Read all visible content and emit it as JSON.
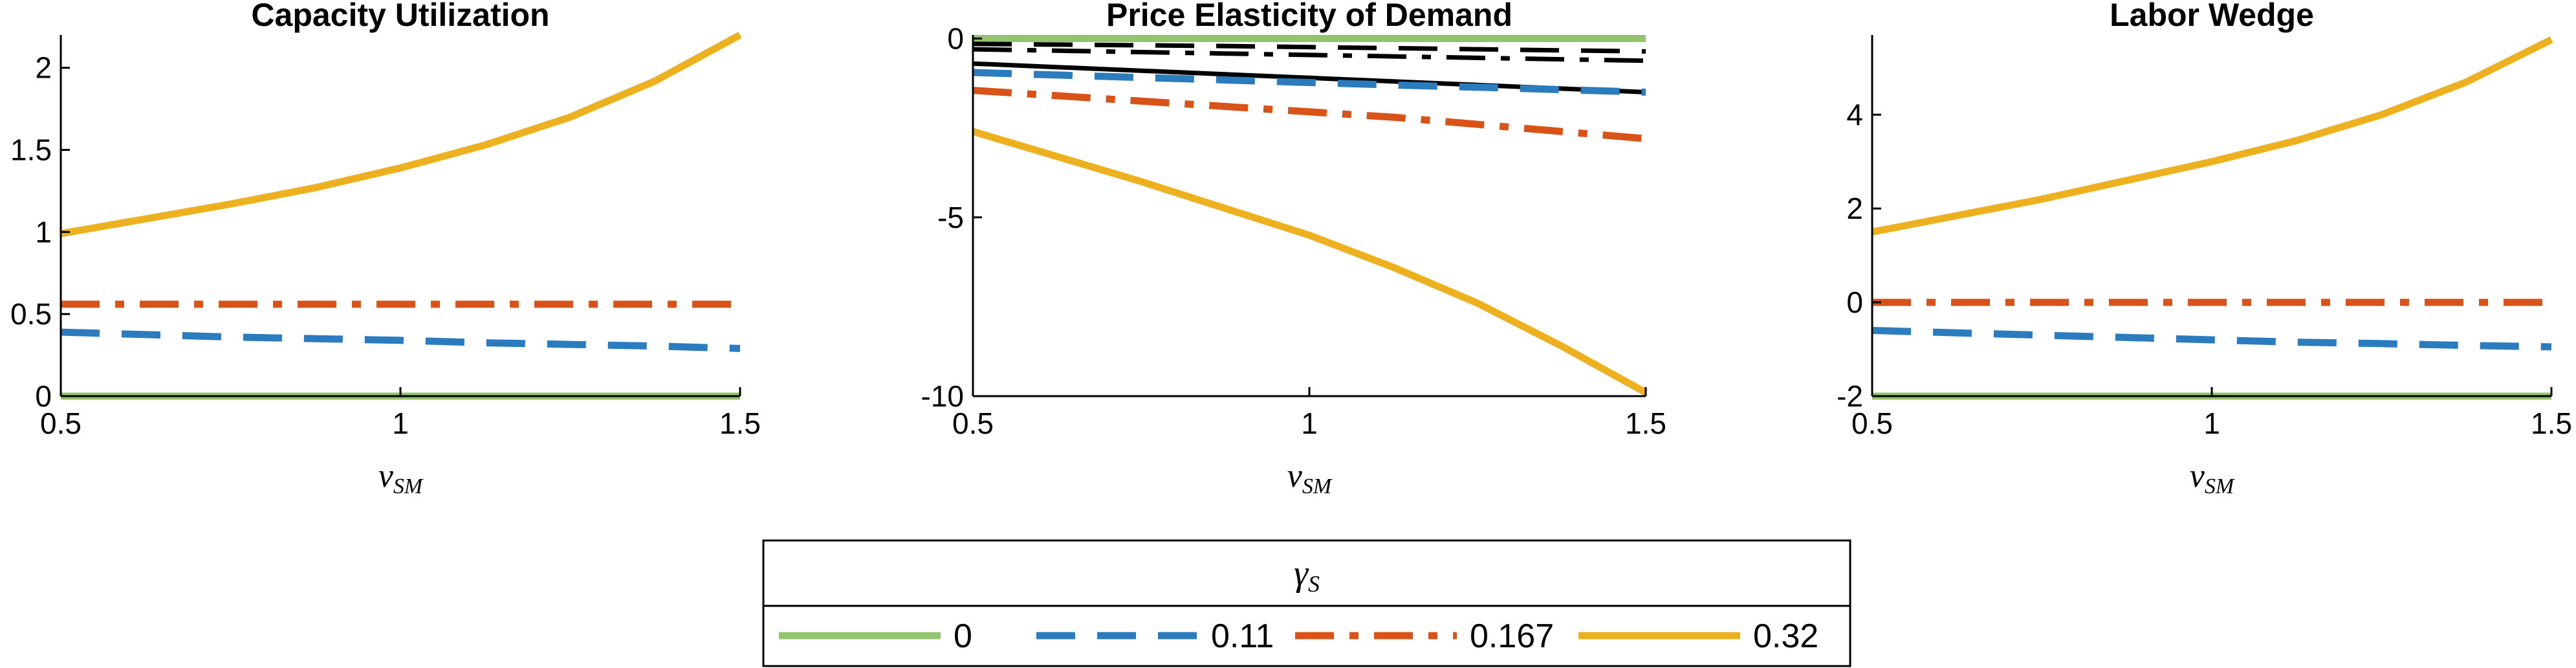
{
  "colors": {
    "green": "#92C46E",
    "blue": "#2B7BBF",
    "orange": "#D95319",
    "yellow": "#EDB120",
    "black": "#000000"
  },
  "legend": {
    "title_symbol": "γ",
    "title_sub": "S",
    "entries": [
      {
        "label": "0",
        "color": "#92C46E",
        "dash": "solid"
      },
      {
        "label": "0.11",
        "color": "#2B7BBF",
        "dash": "dashed"
      },
      {
        "label": "0.167",
        "color": "#D95319",
        "dash": "dashdot"
      },
      {
        "label": "0.32",
        "color": "#EDB120",
        "dash": "solid"
      }
    ]
  },
  "chart_data": [
    {
      "type": "line",
      "title": "Capacity Utilization",
      "xlabel_symbol": "ν",
      "xlabel_sub": "SM",
      "xlim": [
        0.5,
        1.5
      ],
      "ylim": [
        0,
        2.2
      ],
      "xticks": [
        0.5,
        1,
        1.5
      ],
      "xtick_labels": [
        "0.5",
        "1",
        "1.5"
      ],
      "yticks": [
        0,
        0.5,
        1,
        1.5,
        2
      ],
      "ytick_labels": [
        "0",
        "0.5",
        "1",
        "1.5",
        "2"
      ],
      "x": [
        0.5,
        0.625,
        0.75,
        0.875,
        1.0,
        1.125,
        1.25,
        1.375,
        1.5
      ],
      "series": [
        {
          "name": "0",
          "color": "#92C46E",
          "dash": "solid",
          "values": [
            0,
            0,
            0,
            0,
            0,
            0,
            0,
            0,
            0
          ]
        },
        {
          "name": "0.11",
          "color": "#2B7BBF",
          "dash": "dashed",
          "values": [
            0.39,
            0.375,
            0.36,
            0.35,
            0.34,
            0.325,
            0.315,
            0.305,
            0.29
          ]
        },
        {
          "name": "0.167",
          "color": "#D95319",
          "dash": "dashdot",
          "values": [
            0.56,
            0.56,
            0.56,
            0.56,
            0.56,
            0.56,
            0.56,
            0.56,
            0.56
          ]
        },
        {
          "name": "0.32",
          "color": "#EDB120",
          "dash": "solid",
          "values": [
            0.99,
            1.08,
            1.17,
            1.27,
            1.39,
            1.53,
            1.7,
            1.92,
            2.2
          ]
        }
      ]
    },
    {
      "type": "line",
      "title": "Price Elasticity of Demand",
      "xlabel_symbol": "ν",
      "xlabel_sub": "SM",
      "xlim": [
        0.5,
        1.5
      ],
      "ylim": [
        -10,
        0.1
      ],
      "xticks": [
        0.5,
        1,
        1.5
      ],
      "xtick_labels": [
        "0.5",
        "1",
        "1.5"
      ],
      "yticks": [
        -10,
        -5,
        0
      ],
      "ytick_labels": [
        "-10",
        "-5",
        "0"
      ],
      "x": [
        0.5,
        0.625,
        0.75,
        0.875,
        1.0,
        1.125,
        1.25,
        1.375,
        1.5
      ],
      "series": [
        {
          "name": "0",
          "color": "#92C46E",
          "dash": "solid",
          "values": [
            0,
            0,
            0,
            0,
            0,
            0,
            0,
            0,
            0
          ]
        },
        {
          "color": "#000000",
          "dash": "dashed",
          "values": [
            -0.15,
            -0.17,
            -0.19,
            -0.21,
            -0.24,
            -0.27,
            -0.3,
            -0.33,
            -0.36
          ]
        },
        {
          "color": "#000000",
          "dash": "dashdot",
          "values": [
            -0.3,
            -0.34,
            -0.38,
            -0.42,
            -0.46,
            -0.5,
            -0.54,
            -0.58,
            -0.62
          ]
        },
        {
          "color": "#000000",
          "dash": "solid",
          "values": [
            -0.7,
            -0.8,
            -0.9,
            -1.0,
            -1.1,
            -1.2,
            -1.3,
            -1.4,
            -1.5
          ]
        },
        {
          "name": "0.11",
          "color": "#2B7BBF",
          "dash": "dashed",
          "values": [
            -0.95,
            -1.02,
            -1.09,
            -1.16,
            -1.23,
            -1.3,
            -1.36,
            -1.43,
            -1.5
          ]
        },
        {
          "name": "0.167",
          "color": "#D95319",
          "dash": "dashdot",
          "values": [
            -1.45,
            -1.6,
            -1.75,
            -1.9,
            -2.05,
            -2.2,
            -2.4,
            -2.6,
            -2.8
          ]
        },
        {
          "name": "0.32",
          "color": "#EDB120",
          "dash": "solid",
          "values": [
            -2.6,
            -3.3,
            -4.0,
            -4.75,
            -5.5,
            -6.4,
            -7.4,
            -8.6,
            -9.9
          ]
        }
      ]
    },
    {
      "type": "line",
      "title": "Labor Wedge",
      "xlabel_symbol": "ν",
      "xlabel_sub": "SM",
      "xlim": [
        0.5,
        1.5
      ],
      "ylim": [
        -2,
        5.7
      ],
      "xticks": [
        0.5,
        1,
        1.5
      ],
      "xtick_labels": [
        "0.5",
        "1",
        "1.5"
      ],
      "yticks": [
        -2,
        0,
        2,
        4
      ],
      "ytick_labels": [
        "-2",
        "0",
        "2",
        "4"
      ],
      "x": [
        0.5,
        0.625,
        0.75,
        0.875,
        1.0,
        1.125,
        1.25,
        1.375,
        1.5
      ],
      "series": [
        {
          "name": "0",
          "color": "#92C46E",
          "dash": "solid",
          "values": [
            -2,
            -2,
            -2,
            -2,
            -2,
            -2,
            -2,
            -2,
            -2
          ]
        },
        {
          "name": "0.11",
          "color": "#2B7BBF",
          "dash": "dashed",
          "values": [
            -0.6,
            -0.65,
            -0.7,
            -0.75,
            -0.8,
            -0.85,
            -0.88,
            -0.92,
            -0.95
          ]
        },
        {
          "name": "0.167",
          "color": "#D95319",
          "dash": "dashdot",
          "values": [
            0,
            0,
            0,
            0,
            0,
            0,
            0,
            0,
            0
          ]
        },
        {
          "name": "0.32",
          "color": "#EDB120",
          "dash": "solid",
          "values": [
            1.5,
            1.85,
            2.2,
            2.6,
            3.0,
            3.45,
            4.0,
            4.7,
            5.6
          ]
        }
      ]
    }
  ]
}
